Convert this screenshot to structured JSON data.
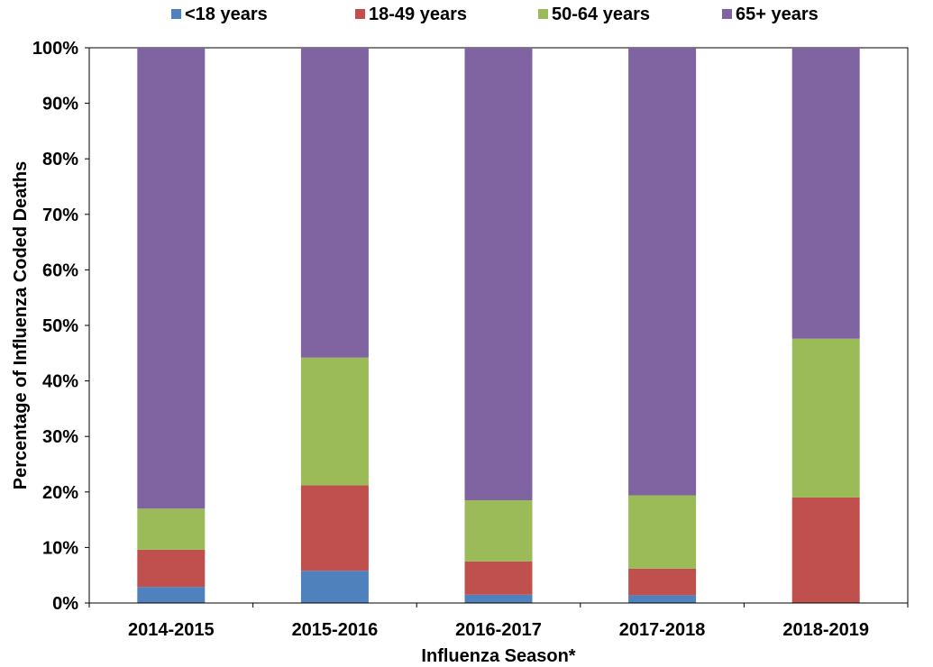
{
  "chart_data": {
    "type": "bar",
    "stacked": true,
    "categories": [
      "2014-2015",
      "2015-2016",
      "2016-2017",
      "2017-2018",
      "2018-2019"
    ],
    "series": [
      {
        "name": "<18 years",
        "color": "#4F81BD",
        "values": [
          2.9,
          5.8,
          1.5,
          1.4,
          0.0
        ]
      },
      {
        "name": "18-49 years",
        "color": "#C0504D",
        "values": [
          6.7,
          15.4,
          6.0,
          4.8,
          19.0
        ]
      },
      {
        "name": "50-64 years",
        "color": "#9BBB59",
        "values": [
          7.4,
          23.0,
          11.0,
          13.2,
          28.6
        ]
      },
      {
        "name": "65+ years",
        "color": "#8064A2",
        "values": [
          83.0,
          55.8,
          81.5,
          80.6,
          52.4
        ]
      }
    ],
    "xlabel": "Influenza Season*",
    "ylabel": "Percentage of Influenza Coded Deaths",
    "yticks": [
      "0%",
      "10%",
      "20%",
      "30%",
      "40%",
      "50%",
      "60%",
      "70%",
      "80%",
      "90%",
      "100%"
    ],
    "ylim": [
      0,
      100
    ],
    "grid": false,
    "legend_position": "top"
  }
}
